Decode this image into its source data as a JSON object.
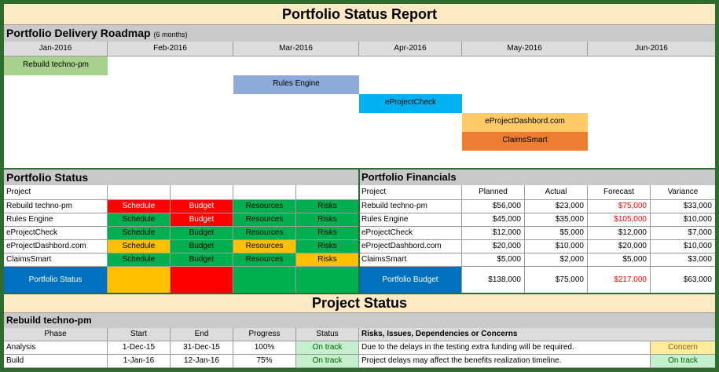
{
  "report_title": "Portfolio Status Report",
  "roadmap": {
    "title": "Portfolio Delivery Roadmap",
    "subtitle": "(6 months)",
    "months": [
      "Jan-2016",
      "Feb-2016",
      "Mar-2016",
      "Apr-2016",
      "May-2016",
      "Jun-2016"
    ],
    "bars": [
      {
        "label": "Rebuild techno-pm",
        "color": "#a9d18e"
      },
      {
        "label": "Rules Engine",
        "color": "#8eaadb"
      },
      {
        "label": "eProjectCheck",
        "color": "#00b0f0"
      },
      {
        "label": "eProjectDashbord.com",
        "color": "#ffc966"
      },
      {
        "label": "ClaimsSmart",
        "color": "#ed7d31"
      }
    ]
  },
  "portfolio_status": {
    "title": "Portfolio Status",
    "header_project": "Project",
    "rows": [
      {
        "project": "Rebuild techno-pm",
        "schedule": "Schedule",
        "budget": "Budget",
        "resources": "Resources",
        "risks": "Risks"
      },
      {
        "project": "Rules Engine",
        "schedule": "Schedule",
        "budget": "Budget",
        "resources": "Resources",
        "risks": "Risks"
      },
      {
        "project": "eProjectCheck",
        "schedule": "Schedule",
        "budget": "Budget",
        "resources": "Resources",
        "risks": "Risks"
      },
      {
        "project": "eProjectDashbord.com",
        "schedule": "Schedule",
        "budget": "Budget",
        "resources": "Resources",
        "risks": "Risks"
      },
      {
        "project": "ClaimsSmart",
        "schedule": "Schedule",
        "budget": "Budget",
        "resources": "Resources",
        "risks": "Risks"
      }
    ],
    "summary_label": "Portfolio Status"
  },
  "portfolio_financials": {
    "title": "Portfolio Financials",
    "headers": [
      "Project",
      "Planned",
      "Actual",
      "Forecast",
      "Variance"
    ],
    "rows": [
      [
        "Rebuild techno-pm",
        "$56,000",
        "$23,000",
        "$75,000",
        "$33,000"
      ],
      [
        "Rules Engine",
        "$45,000",
        "$35,000",
        "$105,000",
        "$10,000"
      ],
      [
        "eProjectCheck",
        "$12,000",
        "$5,000",
        "$12,000",
        "$7,000"
      ],
      [
        "eProjectDashbord.com",
        "$20,000",
        "$10,000",
        "$20,000",
        "$10,000"
      ],
      [
        "ClaimsSmart",
        "$5,000",
        "$2,000",
        "$5,000",
        "$3,000"
      ]
    ],
    "total": {
      "label": "Portfolio Budget",
      "planned": "$138,000",
      "actual": "$75,000",
      "forecast": "$217,000",
      "variance": "$63,000"
    }
  },
  "project_status": {
    "title": "Project Status",
    "project_name": "Rebuild techno-pm",
    "headers": [
      "Phase",
      "Start",
      "End",
      "Progress",
      "Status",
      "Risks, Issues, Dependencies or Concerns"
    ],
    "rows": [
      {
        "phase": "Analysis",
        "start": "1-Dec-15",
        "end": "31-Dec-15",
        "progress": "100%",
        "status": "On track",
        "note": "Due to the delays in the testing extra funding will be required.",
        "flag": "Concern"
      },
      {
        "phase": "Build",
        "start": "1-Jan-16",
        "end": "12-Jan-16",
        "progress": "75%",
        "status": "On track",
        "note": "Project delays may affect the benefits realization timeline.",
        "flag": "On track"
      }
    ]
  },
  "colors": {
    "green": "#00b050",
    "red": "#ff0000",
    "amber": "#ffc000",
    "blue": "#0070c0",
    "frame": "#2e6b2e"
  }
}
